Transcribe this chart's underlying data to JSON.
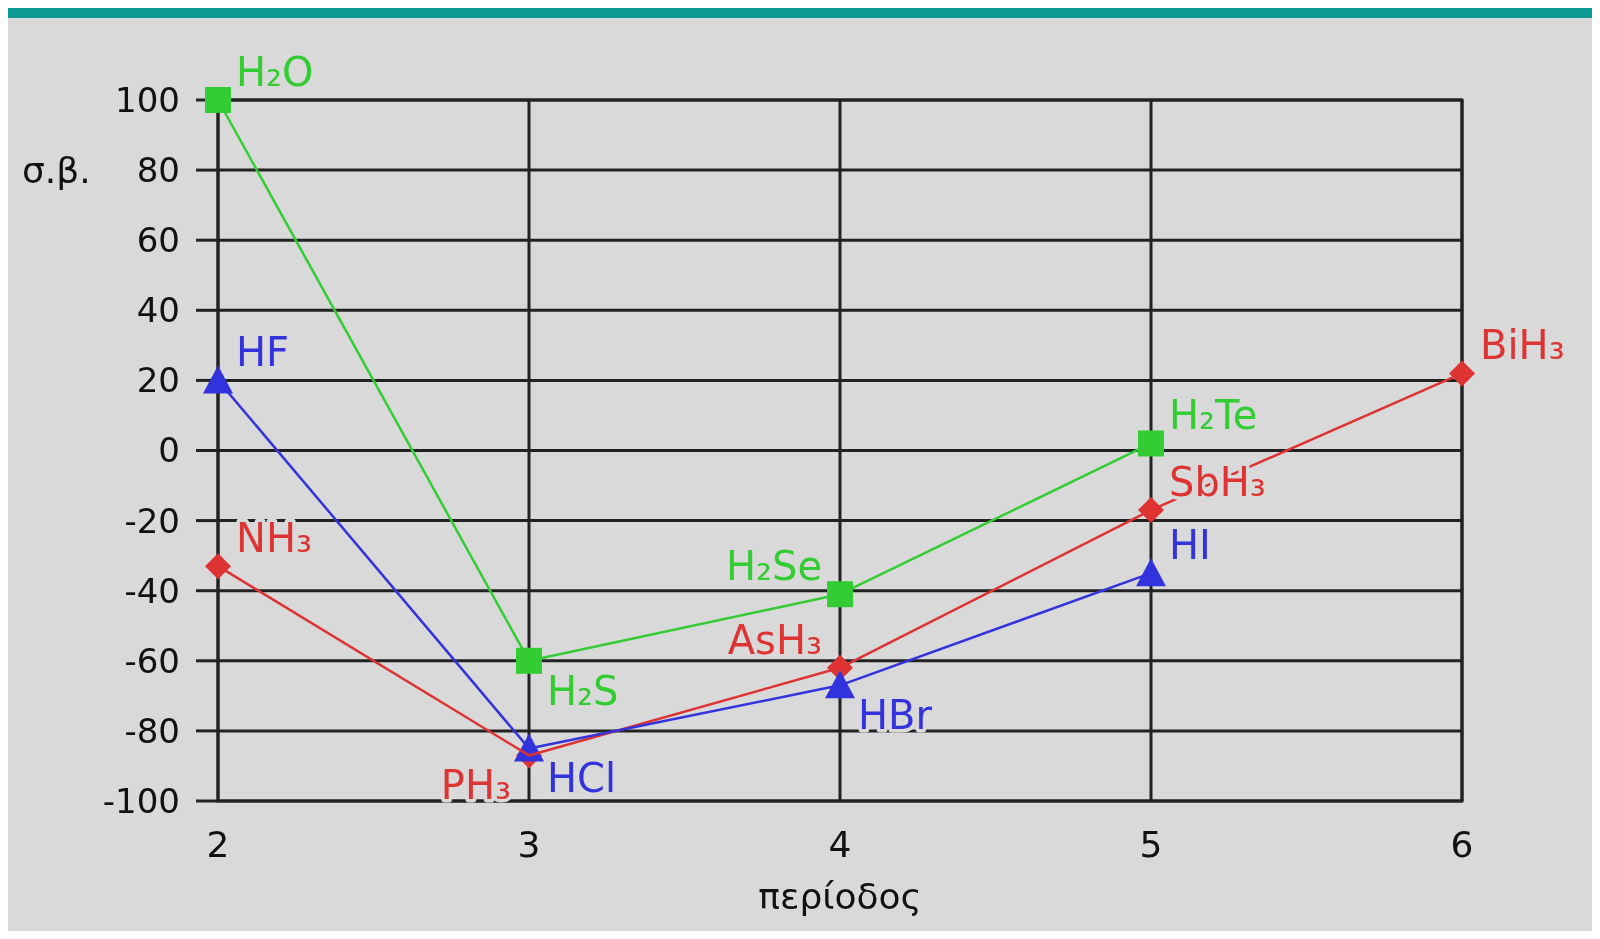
{
  "chart_data": {
    "type": "line",
    "xlabel": "περίοδος",
    "ylabel": "σ.β.",
    "x": [
      2,
      3,
      4,
      5,
      6
    ],
    "xlim": [
      2,
      6
    ],
    "xticks": [
      2,
      3,
      4,
      5,
      6
    ],
    "ylim": [
      -100,
      100
    ],
    "yticks": [
      -100,
      -80,
      -60,
      -40,
      -20,
      0,
      20,
      40,
      60,
      80,
      100
    ],
    "grid": true,
    "series": [
      {
        "color": "#33cc33",
        "marker": "square",
        "values": [
          100,
          -60,
          -41,
          2,
          null
        ]
      },
      {
        "color": "#3333dd",
        "marker": "triangle",
        "values": [
          20,
          -85,
          -67,
          -35,
          null
        ]
      },
      {
        "color": "#dd3333",
        "marker": "diamond",
        "values": [
          -33,
          -87,
          -62,
          -17,
          22
        ]
      }
    ],
    "annotations": [
      {
        "text": "H₂O",
        "x": 2,
        "y": 100
      },
      {
        "text": "H₂S",
        "x": 3,
        "y": -60
      },
      {
        "text": "H₂Se",
        "x": 4,
        "y": -41
      },
      {
        "text": "H₂Te",
        "x": 5,
        "y": 2
      },
      {
        "text": "HF",
        "x": 2,
        "y": 20
      },
      {
        "text": "HCl",
        "x": 3,
        "y": -85
      },
      {
        "text": "HBr",
        "x": 4,
        "y": -67
      },
      {
        "text": "HI",
        "x": 5,
        "y": -35
      },
      {
        "text": "NH₃",
        "x": 2,
        "y": -33
      },
      {
        "text": "PH₃",
        "x": 3,
        "y": -87
      },
      {
        "text": "AsH₃",
        "x": 4,
        "y": -62
      },
      {
        "text": "SbH₃",
        "x": 5,
        "y": -17
      },
      {
        "text": "BiH₃",
        "x": 6,
        "y": 22
      }
    ]
  }
}
